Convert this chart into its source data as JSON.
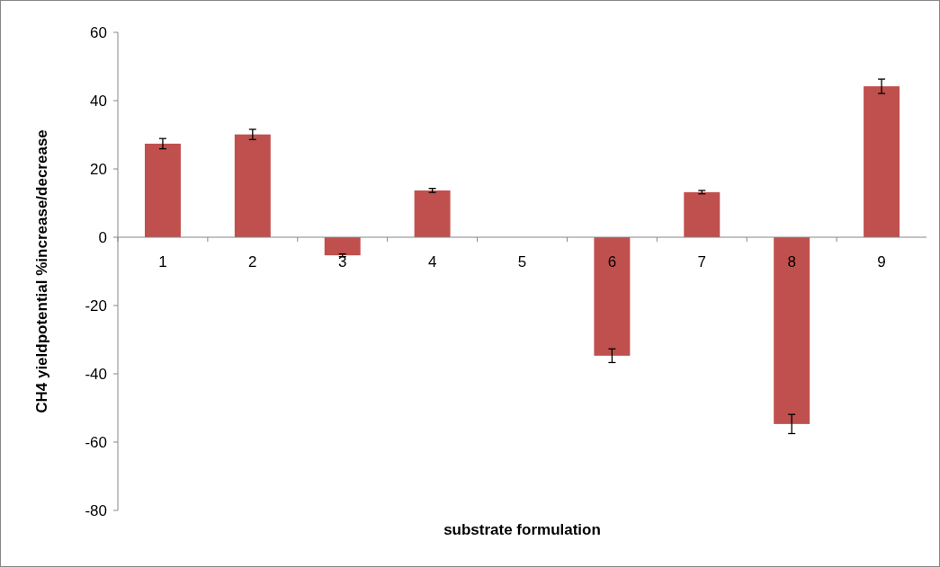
{
  "chart_data": {
    "type": "bar",
    "xlabel": "substrate formulation",
    "ylabel": "CH4 yieldpotential %increase/decrease",
    "categories": [
      "1",
      "2",
      "3",
      "4",
      "5",
      "6",
      "7",
      "8",
      "9"
    ],
    "values": [
      27.4,
      30.1,
      -5.3,
      13.7,
      0,
      -34.7,
      13.2,
      -54.7,
      44.2
    ],
    "errors": [
      1.5,
      1.5,
      0.4,
      0.6,
      null,
      2,
      0.5,
      2.8,
      2.1
    ],
    "color": "#c0504d",
    "ylim": [
      -80,
      60
    ],
    "yticks": [
      -80,
      -60,
      -40,
      -20,
      0,
      20,
      40,
      60
    ],
    "grid": false
  }
}
